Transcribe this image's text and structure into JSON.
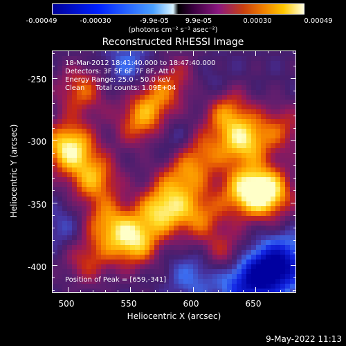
{
  "colorbar": {
    "ticks": [
      "-0.00049",
      "-0.00030",
      "-9.9e-05",
      "9.9e-05",
      "0.00030",
      "0.00049"
    ],
    "units": "(photons cm⁻² s⁻¹ asec⁻²)"
  },
  "title": "Reconstructed RHESSI Image",
  "annotations": {
    "time": "18-Mar-2012 18:41:40.000 to 18:47:40.000",
    "detectors": "Detectors: 3F 5F 6F 7F 8F, Att 0",
    "energy": "Energy Range: 25.0 - 50.0 keV",
    "clean": "Clean     Total counts: 1.09E+04",
    "peak": "Position of Peak = [659,-341]"
  },
  "timestamp": "9-May-2022 11:13",
  "chart_data": {
    "type": "heatmap",
    "title": "Reconstructed RHESSI Image",
    "xlabel": "Heliocentric X (arcsec)",
    "ylabel": "Heliocentric Y (arcsec)",
    "x_ticks": [
      "500",
      "550",
      "600",
      "650"
    ],
    "y_ticks": [
      "-250",
      "-300",
      "-350",
      "-400"
    ],
    "xlim": [
      487,
      683
    ],
    "ylim": [
      -422,
      -228
    ],
    "peak": [
      659,
      -341
    ],
    "colorscale": [
      "#0000a0",
      "#4aa0ff",
      "#000000",
      "#8a1880",
      "#f08000",
      "#ffffe0"
    ],
    "blobs": [
      {
        "x": 500,
        "y": -305,
        "value": 1.0
      },
      {
        "x": 520,
        "y": -330,
        "value": 0.7
      },
      {
        "x": 510,
        "y": -260,
        "value": 0.55
      },
      {
        "x": 530,
        "y": -365,
        "value": 0.6
      },
      {
        "x": 552,
        "y": -380,
        "value": 0.9
      },
      {
        "x": 575,
        "y": -355,
        "value": 0.85
      },
      {
        "x": 590,
        "y": -330,
        "value": 0.55
      },
      {
        "x": 558,
        "y": -285,
        "value": 0.6
      },
      {
        "x": 570,
        "y": -265,
        "value": 0.5
      },
      {
        "x": 605,
        "y": -310,
        "value": 0.55
      },
      {
        "x": 625,
        "y": -275,
        "value": 0.65
      },
      {
        "x": 640,
        "y": -300,
        "value": 0.85
      },
      {
        "x": 659,
        "y": -341,
        "value": 1.0
      },
      {
        "x": 640,
        "y": -340,
        "value": 0.7
      },
      {
        "x": 605,
        "y": -360,
        "value": 0.55
      },
      {
        "x": 670,
        "y": -290,
        "value": 0.45
      },
      {
        "x": 625,
        "y": -390,
        "value": 0.4
      },
      {
        "x": 590,
        "y": -250,
        "value": 0.35
      },
      {
        "x": 515,
        "y": -395,
        "value": 0.45
      }
    ],
    "negatives": [
      {
        "x": 660,
        "y": -405,
        "value": -0.9
      },
      {
        "x": 640,
        "y": -415,
        "value": -0.6
      },
      {
        "x": 675,
        "y": -395,
        "value": -0.5
      },
      {
        "x": 600,
        "y": -408,
        "value": -0.35
      },
      {
        "x": 548,
        "y": -240,
        "value": -0.35
      },
      {
        "x": 612,
        "y": -260,
        "value": -0.3
      },
      {
        "x": 585,
        "y": -300,
        "value": -0.3
      },
      {
        "x": 497,
        "y": -370,
        "value": -0.25
      }
    ]
  }
}
